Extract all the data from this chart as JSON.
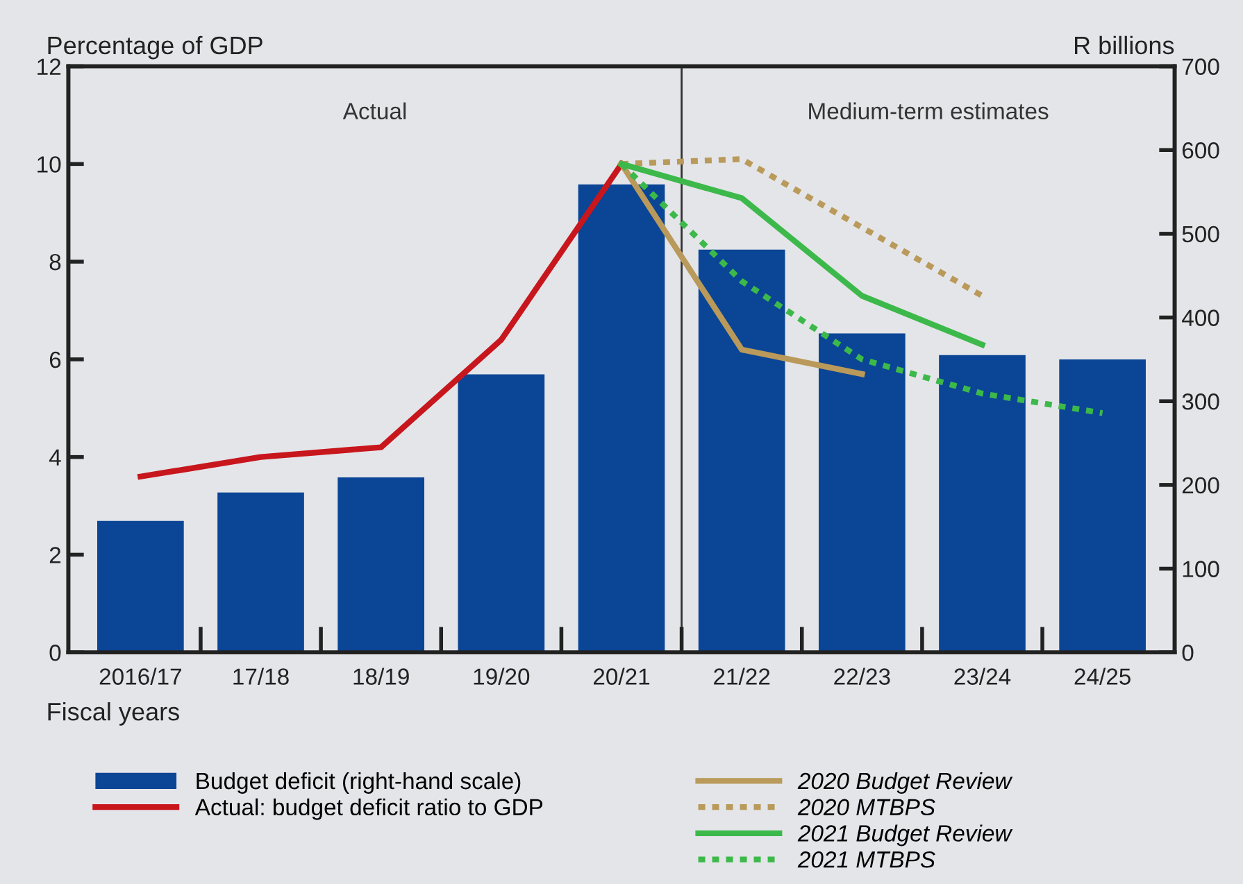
{
  "chart_data": {
    "type": "bar",
    "categories": [
      "2016/17",
      "17/18",
      "18/19",
      "19/20",
      "20/21",
      "21/22",
      "22/23",
      "23/24",
      "24/25"
    ],
    "ylabel": "Percentage of GDP",
    "y2label": "R billions",
    "xlabel": "Fiscal years",
    "ylim": [
      0,
      12
    ],
    "yticks": [
      0,
      2,
      4,
      6,
      8,
      10,
      12
    ],
    "y2lim": [
      0,
      700
    ],
    "y2ticks": [
      0,
      100,
      200,
      300,
      400,
      500,
      600,
      700
    ],
    "series": [
      {
        "name": "Budget deficit (right-hand scale)",
        "axis": "y2",
        "color": "#0b4595",
        "values": [
          157,
          191,
          209,
          332,
          559,
          481,
          381,
          355,
          350
        ]
      },
      {
        "name": "Actual: budget deficit ratio to GDP",
        "type": "line",
        "color": "#c8161d",
        "line_style": "solid",
        "values": [
          3.6,
          4.0,
          4.2,
          6.4,
          10.0,
          null,
          null,
          null,
          null
        ]
      },
      {
        "name": "2020 Budget Review",
        "type": "line",
        "color": "#b99a5a",
        "line_style": "solid",
        "values": [
          null,
          null,
          null,
          null,
          10.0,
          6.2,
          5.7,
          null,
          null
        ]
      },
      {
        "name": "2020 MTBPS",
        "type": "line",
        "color": "#b99a5a",
        "line_style": "dotted",
        "values": [
          null,
          null,
          null,
          null,
          10.0,
          10.1,
          8.7,
          7.3,
          null
        ]
      },
      {
        "name": "2021 Budget Review",
        "type": "line",
        "color": "#3cb94a",
        "line_style": "solid",
        "values": [
          null,
          null,
          null,
          null,
          10.0,
          9.3,
          7.3,
          6.3,
          null
        ]
      },
      {
        "name": "2021 MTBPS",
        "type": "line",
        "color": "#3cb94a",
        "line_style": "dotted",
        "values": [
          null,
          null,
          null,
          null,
          10.0,
          7.6,
          6.0,
          5.3,
          4.9
        ]
      }
    ],
    "annotations": [
      "Actual",
      "Medium-term estimates"
    ],
    "grid": false,
    "legend": "bottom"
  }
}
